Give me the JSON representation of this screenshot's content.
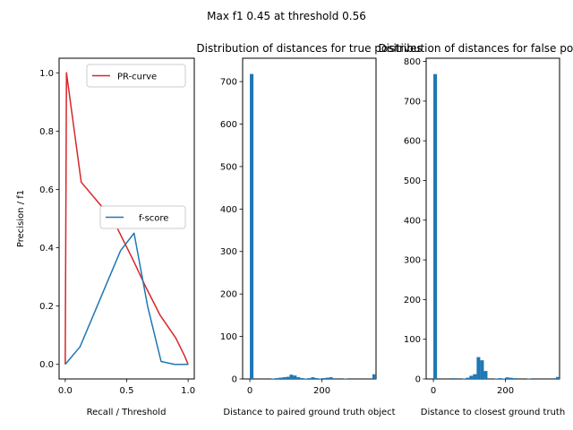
{
  "figure": {
    "suptitle": "Max f1 0.45 at threshold 0.56"
  },
  "chart_data": [
    {
      "type": "line",
      "title": "",
      "xlabel": "Recall / Threshold",
      "ylabel": "Precision / f1",
      "xlim": [
        -0.05,
        1.05
      ],
      "ylim": [
        -0.05,
        1.05
      ],
      "xticks": [
        0.0,
        0.5,
        1.0
      ],
      "xtick_labels": [
        "0.0",
        "0.5",
        "1.0"
      ],
      "yticks": [
        0.0,
        0.2,
        0.4,
        0.6,
        0.8,
        1.0
      ],
      "ytick_labels": [
        "0.0",
        "0.2",
        "0.4",
        "0.6",
        "0.8",
        "1.0"
      ],
      "grid": false,
      "series": [
        {
          "name": "PR-curve",
          "color": "#d62728",
          "legend_placement": "upper right",
          "x": [
            0.0,
            0.01,
            0.13,
            0.3,
            0.42,
            0.55,
            0.65,
            0.77,
            0.9,
            0.97,
            1.0
          ],
          "y": [
            0.0,
            1.0,
            0.625,
            0.54,
            0.47,
            0.36,
            0.27,
            0.17,
            0.09,
            0.03,
            0.0
          ]
        },
        {
          "name": "f-score",
          "color": "#1f77b4",
          "legend_placement": "center right",
          "x": [
            0.0,
            0.12,
            0.23,
            0.34,
            0.45,
            0.56,
            0.67,
            0.78,
            0.89,
            1.0
          ],
          "y": [
            0.0,
            0.06,
            0.17,
            0.28,
            0.39,
            0.45,
            0.2,
            0.01,
            0.0,
            0.0
          ]
        }
      ]
    },
    {
      "type": "bar",
      "title": "Distribution of distances for true positives",
      "xlabel": "Distance to paired ground truth object",
      "ylabel": "",
      "xlim": [
        -20,
        350
      ],
      "ylim": [
        0,
        755
      ],
      "xticks": [
        0,
        200
      ],
      "xtick_labels": [
        "0",
        "200"
      ],
      "yticks": [
        0,
        100,
        200,
        300,
        400,
        500,
        600,
        700
      ],
      "ytick_labels": [
        "0",
        "100",
        "200",
        "300",
        "400",
        "500",
        "600",
        "700"
      ],
      "bin_width": 10,
      "color": "#1f77b4",
      "bin_starts": [
        0,
        60,
        70,
        80,
        90,
        100,
        110,
        120,
        130,
        140,
        150,
        160,
        170,
        180,
        190,
        200,
        210,
        220,
        260,
        340
      ],
      "values": [
        718,
        1,
        2,
        3,
        4,
        5,
        10,
        8,
        4,
        2,
        1,
        2,
        4,
        2,
        1,
        2,
        3,
        4,
        1,
        11
      ]
    },
    {
      "type": "bar",
      "title": "Distribution of distances for false positives",
      "xlabel": "Distance to closest ground truth",
      "ylabel": "",
      "xlim": [
        -20,
        350
      ],
      "ylim": [
        0,
        808
      ],
      "xticks": [
        0,
        200
      ],
      "xtick_labels": [
        "0",
        "200"
      ],
      "yticks": [
        0,
        100,
        200,
        300,
        400,
        500,
        600,
        700,
        800
      ],
      "ytick_labels": [
        "0",
        "100",
        "200",
        "300",
        "400",
        "500",
        "600",
        "700",
        "800"
      ],
      "bin_width": 10,
      "color": "#1f77b4",
      "bin_starts": [
        0,
        50,
        80,
        90,
        100,
        110,
        120,
        130,
        140,
        170,
        180,
        190,
        200,
        210,
        220,
        260,
        340
      ],
      "values": [
        768,
        2,
        1,
        3,
        8,
        12,
        55,
        47,
        20,
        1,
        2,
        1,
        4,
        3,
        2,
        1,
        5
      ]
    }
  ]
}
